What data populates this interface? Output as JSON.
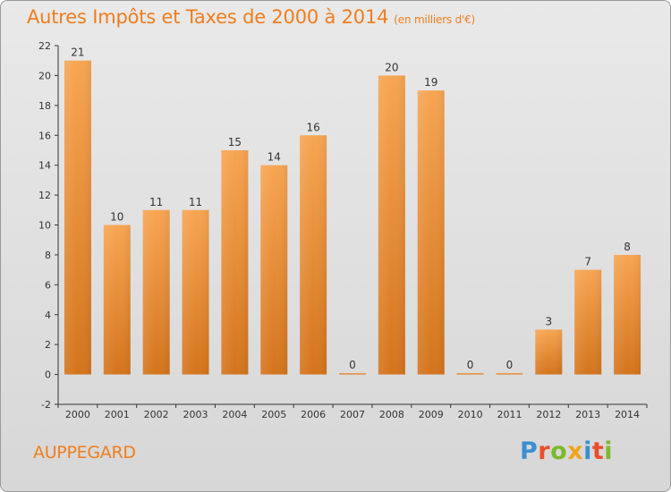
{
  "title": {
    "main": "Autres Impôts et Taxes de 2000 à 2014",
    "unit": "(en milliers d'€)"
  },
  "commune": "AUPPEGARD",
  "logo": {
    "letters": [
      {
        "char": "P",
        "color": "#3a8fd0"
      },
      {
        "char": "r",
        "color": "#e94e2b"
      },
      {
        "char": "o",
        "color": "#7cb92c"
      },
      {
        "char": "x",
        "color": "#f0a419"
      },
      {
        "char": "i",
        "color": "#3a8fd0"
      },
      {
        "char": "t",
        "color": "#e94e2b"
      },
      {
        "char": "i",
        "color": "#7cb92c"
      }
    ]
  },
  "colors": {
    "bar_top": "#f7a552",
    "bar_bottom": "#d4741c",
    "accent": "#f07d1d",
    "axis": "#333333"
  },
  "chart_data": {
    "type": "bar",
    "title": "Autres Impôts et Taxes de 2000 à 2014",
    "subtitle": "(en milliers d'€)",
    "xlabel": "",
    "ylabel": "",
    "categories": [
      "2000",
      "2001",
      "2002",
      "2003",
      "2004",
      "2005",
      "2006",
      "2007",
      "2008",
      "2009",
      "2010",
      "2011",
      "2012",
      "2013",
      "2014"
    ],
    "values": [
      21,
      10,
      11,
      11,
      15,
      14,
      16,
      0,
      20,
      19,
      0,
      0,
      3,
      7,
      8
    ],
    "ylim": [
      -2,
      22
    ],
    "yticks": [
      -2,
      0,
      2,
      4,
      6,
      8,
      10,
      12,
      14,
      16,
      18,
      20,
      22
    ],
    "grid": false
  }
}
